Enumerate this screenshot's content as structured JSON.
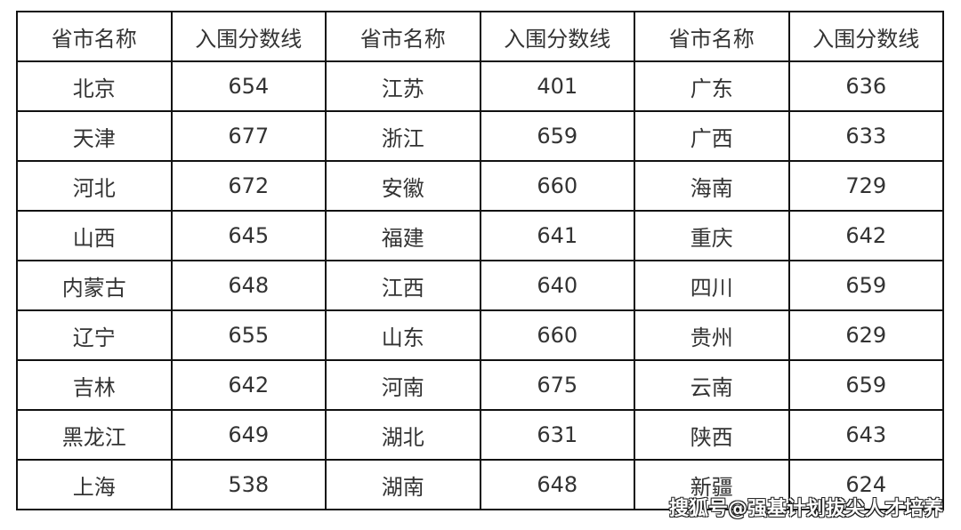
{
  "table": {
    "headers": [
      "省市名称",
      "入围分数线",
      "省市名称",
      "入围分数线",
      "省市名称",
      "入围分数线"
    ],
    "rows": [
      [
        "北京",
        "654",
        "江苏",
        "401",
        "广东",
        "636"
      ],
      [
        "天津",
        "677",
        "浙江",
        "659",
        "广西",
        "633"
      ],
      [
        "河北",
        "672",
        "安徽",
        "660",
        "海南",
        "729"
      ],
      [
        "山西",
        "645",
        "福建",
        "641",
        "重庆",
        "642"
      ],
      [
        "内蒙古",
        "648",
        "江西",
        "640",
        "四川",
        "659"
      ],
      [
        "辽宁",
        "655",
        "山东",
        "660",
        "贵州",
        "629"
      ],
      [
        "吉林",
        "642",
        "河南",
        "675",
        "云南",
        "659"
      ],
      [
        "黑龙江",
        "649",
        "湖北",
        "631",
        "陕西",
        "643"
      ],
      [
        "上海",
        "538",
        "湖南",
        "648",
        "新疆",
        "624"
      ]
    ]
  },
  "watermark": "搜狐号@强基计划拔尖人才培养"
}
